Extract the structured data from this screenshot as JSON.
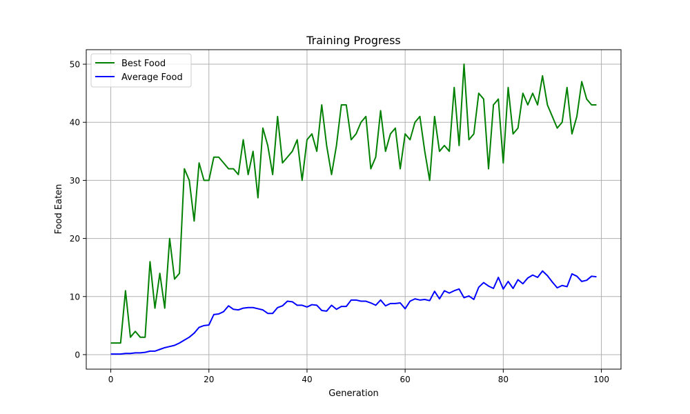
{
  "chart_data": {
    "type": "line",
    "title": "Training Progress",
    "xlabel": "Generation",
    "ylabel": "Food Eaten",
    "xlim": [
      -5,
      104
    ],
    "ylim": [
      -2.5,
      52.5
    ],
    "xticks": [
      0,
      20,
      40,
      60,
      80,
      100
    ],
    "yticks": [
      0,
      10,
      20,
      30,
      40,
      50
    ],
    "grid": true,
    "legend_position": "top-left",
    "series": [
      {
        "name": "Best Food",
        "color": "#008000",
        "values": [
          2,
          2,
          2,
          11,
          3,
          4,
          3,
          3,
          16,
          8,
          14,
          8,
          20,
          13,
          14,
          32,
          30,
          23,
          33,
          30,
          30,
          34,
          34,
          33,
          32,
          32,
          31,
          37,
          31,
          35,
          27,
          39,
          36,
          31,
          41,
          33,
          34,
          35,
          37,
          30,
          37,
          38,
          35,
          43,
          36,
          31,
          36,
          43,
          43,
          37,
          38,
          40,
          41,
          32,
          34,
          42,
          35,
          38,
          39,
          32,
          38,
          37,
          40,
          41,
          35,
          30,
          41,
          35,
          36,
          35,
          46,
          36,
          50,
          37,
          38,
          45,
          44,
          32,
          43,
          44,
          33,
          46,
          38,
          39,
          45,
          43,
          45,
          43,
          48,
          43,
          41,
          39,
          40,
          46,
          38,
          41,
          47,
          44,
          43,
          43
        ]
      },
      {
        "name": "Average Food",
        "color": "#0000ff",
        "values": [
          0.1,
          0.1,
          0.1,
          0.2,
          0.2,
          0.3,
          0.3,
          0.4,
          0.6,
          0.6,
          0.9,
          1.2,
          1.4,
          1.6,
          2.0,
          2.5,
          3.0,
          3.7,
          4.7,
          5.0,
          5.1,
          6.9,
          7.0,
          7.4,
          8.4,
          7.8,
          7.7,
          8.0,
          8.1,
          8.1,
          7.9,
          7.7,
          7.1,
          7.1,
          8.1,
          8.4,
          9.2,
          9.1,
          8.5,
          8.5,
          8.2,
          8.6,
          8.5,
          7.6,
          7.5,
          8.5,
          7.8,
          8.3,
          8.3,
          9.4,
          9.4,
          9.2,
          9.2,
          8.9,
          8.5,
          9.4,
          8.4,
          8.8,
          8.8,
          8.9,
          7.9,
          9.2,
          9.6,
          9.4,
          9.5,
          9.3,
          10.9,
          9.6,
          11.0,
          10.6,
          11.0,
          11.3,
          9.8,
          10.1,
          9.5,
          11.6,
          12.4,
          11.8,
          11.4,
          13.3,
          11.3,
          12.6,
          11.4,
          12.9,
          12.2,
          13.2,
          13.7,
          13.3,
          14.4,
          13.6,
          12.5,
          11.5,
          11.9,
          11.7,
          13.9,
          13.5,
          12.6,
          12.8,
          13.5,
          13.4
        ]
      }
    ]
  }
}
